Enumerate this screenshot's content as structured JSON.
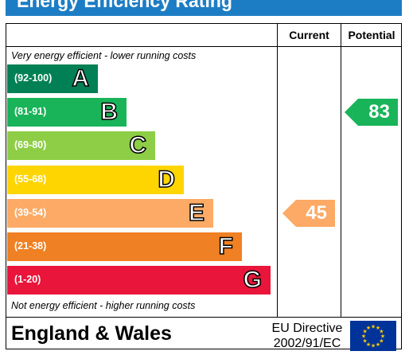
{
  "title": "Energy Efficiency Rating",
  "columns": {
    "current": "Current",
    "potential": "Potential"
  },
  "captions": {
    "top": "Very energy efficient - lower running costs",
    "bottom": "Not energy efficient - higher running costs"
  },
  "footer": {
    "region": "England & Wales",
    "directive_line1": "EU Directive",
    "directive_line2": "2002/91/EC"
  },
  "chart_data": {
    "type": "bar",
    "categories": [
      "A",
      "B",
      "C",
      "D",
      "E",
      "F",
      "G"
    ],
    "bands": [
      {
        "letter": "A",
        "range": "(92-100)",
        "min": 92,
        "max": 100,
        "color": "#008054"
      },
      {
        "letter": "B",
        "range": "(81-91)",
        "min": 81,
        "max": 91,
        "color": "#19b459"
      },
      {
        "letter": "C",
        "range": "(69-80)",
        "min": 69,
        "max": 80,
        "color": "#8dce46"
      },
      {
        "letter": "D",
        "range": "(55-68)",
        "min": 55,
        "max": 68,
        "color": "#ffd500"
      },
      {
        "letter": "E",
        "range": "(39-54)",
        "min": 39,
        "max": 54,
        "color": "#fcaa65"
      },
      {
        "letter": "F",
        "range": "(21-38)",
        "min": 21,
        "max": 38,
        "color": "#ef8023"
      },
      {
        "letter": "G",
        "range": "(1-20)",
        "min": 1,
        "max": 20,
        "color": "#e9153b"
      }
    ],
    "current": {
      "value": 45,
      "band": "E",
      "color": "#fcaa65"
    },
    "potential": {
      "value": 83,
      "band": "B",
      "color": "#19b459"
    }
  }
}
